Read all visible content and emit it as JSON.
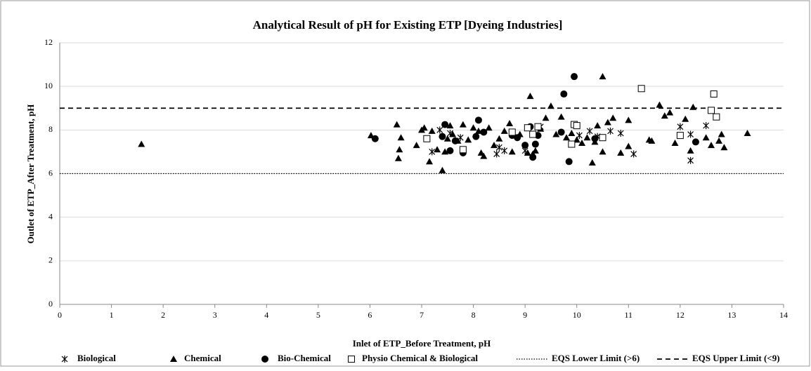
{
  "chart_data": {
    "type": "scatter",
    "title": "Analytical Result of pH for Existing ETP [Dyeing Industries]",
    "x_label": "Inlet of ETP_Before Treatment, pH",
    "y_label": "Outlet of ETP_After Treatment, pH",
    "xlim": [
      0,
      14
    ],
    "ylim": [
      0,
      12
    ],
    "xticks": [
      0,
      1,
      2,
      3,
      4,
      5,
      6,
      7,
      8,
      9,
      10,
      11,
      12,
      13,
      14
    ],
    "yticks": [
      0,
      2,
      4,
      6,
      8,
      10,
      12
    ],
    "grid": true,
    "legend": "bottom",
    "series": [
      {
        "name": "Biological",
        "marker": "asterisk",
        "color": "#000000",
        "x": [
          7.2,
          7.35,
          7.55,
          7.75,
          8.45,
          8.5,
          8.6,
          8.75,
          9.0,
          9.3,
          10.05,
          10.25,
          10.4,
          10.65,
          10.85,
          11.1,
          12.0,
          12.2,
          12.2,
          12.5
        ],
        "values": [
          7.0,
          8.0,
          7.85,
          7.65,
          6.9,
          7.2,
          7.05,
          7.9,
          7.05,
          8.15,
          7.75,
          7.95,
          7.7,
          7.95,
          7.85,
          6.9,
          8.15,
          7.8,
          6.6,
          8.2
        ]
      },
      {
        "name": "Chemical",
        "marker": "triangle",
        "color": "#000000",
        "x": [
          1.58,
          6.02,
          6.52,
          6.57,
          6.55,
          6.6,
          6.9,
          7.0,
          7.05,
          7.15,
          7.2,
          7.3,
          7.4,
          7.45,
          7.5,
          7.55,
          7.6,
          7.7,
          7.8,
          7.9,
          8.0,
          8.1,
          8.15,
          8.2,
          8.3,
          8.4,
          8.5,
          8.6,
          8.7,
          8.75,
          8.9,
          9.05,
          9.1,
          9.15,
          9.2,
          9.3,
          9.4,
          9.5,
          9.6,
          9.7,
          9.8,
          9.9,
          10.0,
          10.1,
          10.2,
          10.3,
          10.35,
          10.4,
          10.5,
          10.5,
          10.6,
          10.7,
          10.85,
          11.0,
          11.0,
          11.4,
          11.45,
          11.6,
          11.7,
          11.8,
          11.9,
          12.1,
          12.2,
          12.25,
          12.5,
          12.6,
          12.75,
          12.8,
          12.85,
          13.3
        ],
        "values": [
          7.35,
          7.75,
          8.25,
          7.1,
          6.7,
          7.65,
          7.3,
          8.0,
          8.1,
          6.55,
          7.95,
          7.1,
          6.15,
          7.0,
          7.6,
          8.2,
          7.8,
          7.5,
          8.25,
          7.55,
          8.1,
          7.95,
          6.95,
          6.8,
          8.1,
          7.3,
          7.6,
          7.95,
          8.3,
          7.0,
          7.8,
          6.95,
          9.55,
          6.9,
          7.05,
          8.05,
          8.55,
          9.1,
          7.8,
          8.6,
          7.65,
          7.85,
          7.55,
          7.4,
          7.65,
          6.5,
          7.45,
          8.2,
          10.45,
          7.0,
          8.35,
          8.55,
          6.95,
          8.45,
          7.25,
          7.55,
          7.5,
          9.15,
          8.65,
          8.8,
          7.4,
          8.5,
          7.05,
          9.05,
          7.65,
          7.3,
          7.5,
          7.8,
          7.2,
          7.85
        ]
      },
      {
        "name": "Bio-Chemical",
        "marker": "circle",
        "color": "#000000",
        "x": [
          6.1,
          7.4,
          7.45,
          7.55,
          7.65,
          7.8,
          8.05,
          8.1,
          8.2,
          8.75,
          8.85,
          9.0,
          9.1,
          9.15,
          9.2,
          9.25,
          9.7,
          9.75,
          9.85,
          9.95,
          10.35,
          12.3
        ],
        "values": [
          7.6,
          7.7,
          8.25,
          7.05,
          7.5,
          6.95,
          7.7,
          8.45,
          7.9,
          7.75,
          7.65,
          7.3,
          8.15,
          6.75,
          7.35,
          7.75,
          7.9,
          9.65,
          6.55,
          10.45,
          7.6,
          7.45
        ]
      },
      {
        "name": "Physio Chemical & Biological",
        "marker": "square",
        "color": "#000000",
        "x": [
          7.1,
          7.8,
          8.75,
          9.05,
          9.15,
          9.25,
          9.9,
          9.95,
          10.0,
          10.5,
          11.25,
          12.0,
          12.6,
          12.65,
          12.7
        ],
        "values": [
          7.6,
          7.1,
          7.9,
          8.1,
          7.8,
          8.15,
          7.35,
          8.25,
          8.2,
          7.65,
          9.9,
          7.75,
          8.9,
          9.65,
          8.6
        ]
      }
    ],
    "reference_lines": [
      {
        "name": "EQS Lower Limit (>6)",
        "value": 6,
        "style": "dotted"
      },
      {
        "name": "EQS Upper Limit (<9)",
        "value": 9,
        "style": "dashed"
      }
    ]
  }
}
